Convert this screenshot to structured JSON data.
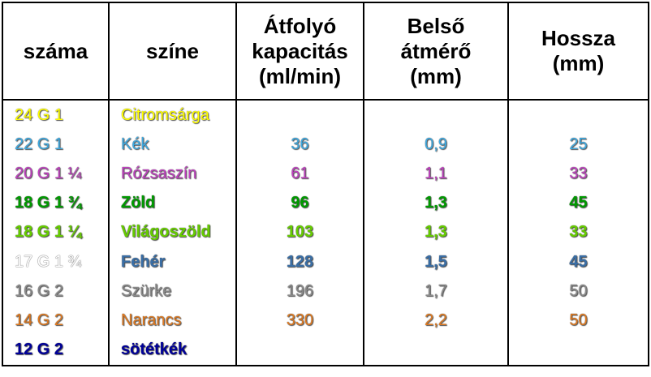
{
  "table": {
    "header": [
      "száma",
      "színe",
      "Átfolyó\nkapacitás\n(ml/min)",
      "Belső\nátmérő\n(mm)",
      "Hossza\n(mm)"
    ],
    "rows": [
      {
        "cells": [
          "24 G 1",
          "Citromsárga"
        ],
        "colors": [
          "#ffff00",
          "#ffff00"
        ],
        "bold": [
          false,
          false
        ]
      },
      {
        "cells": [
          "22 G 1",
          "Kék",
          "36",
          "0,9",
          "25"
        ],
        "colors": [
          "#3fa9e0",
          "#3fa9e0"
        ],
        "bold": [
          false,
          false
        ]
      },
      {
        "cells": [
          "20 G 1 ¼",
          "Rózsaszín",
          "61",
          "1,1",
          "33"
        ],
        "colors": [
          "#c040c0",
          "#c040c0"
        ],
        "bold": [
          false,
          false
        ]
      },
      {
        "cells": [
          "18 G 1 ¾",
          "Zöld",
          "96",
          "1,3",
          "45"
        ],
        "colors": [
          "#009a00",
          "#009a00"
        ],
        "bold": [
          true,
          true
        ]
      },
      {
        "cells": [
          "18 G 1 ¼",
          "Világoszöld",
          "103",
          "1,3",
          "33"
        ],
        "colors": [
          "#66cc00",
          "#66cc00"
        ],
        "bold": [
          true,
          true
        ]
      },
      {
        "cells": [
          "17 G 1 ¾",
          "Fehér",
          "128",
          "1,5",
          "45"
        ],
        "colors": [
          "#ffffff",
          "#3a6ea5"
        ],
        "bold": [
          false,
          true
        ]
      },
      {
        "cells": [
          "16 G 2",
          "Szürke",
          "196",
          "1,7",
          "50"
        ],
        "colors": [
          "#8a8a8a",
          "#8a8a8a"
        ],
        "bold": [
          false,
          false
        ]
      },
      {
        "cells": [
          "14 G 2",
          "Narancs",
          "330",
          "2,2",
          "50"
        ],
        "colors": [
          "#e07a20",
          "#e07a20"
        ],
        "bold": [
          false,
          false
        ]
      },
      {
        "cells": [
          "12 G 2",
          "sötétkék"
        ],
        "colors": [
          "#000099",
          "#000099"
        ],
        "bold": [
          true,
          true
        ]
      }
    ]
  }
}
